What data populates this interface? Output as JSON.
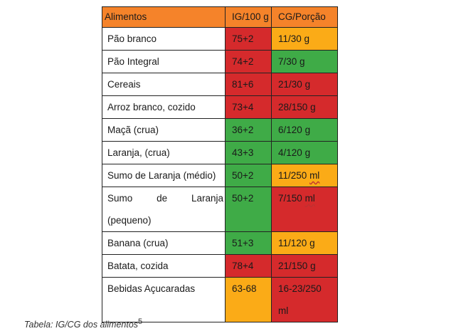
{
  "header": {
    "food": "Alimentos",
    "ig": "IG/100 g",
    "cg": "CG/Porção"
  },
  "rows": [
    {
      "food": "Pão branco",
      "ig": "75+2",
      "cg_amount": "11/30",
      "cg_unit": "g",
      "ig_color": "red",
      "cg_color": "orange"
    },
    {
      "food": "Pão Integral",
      "ig": "74+2",
      "cg_amount": "7/30",
      "cg_unit": "g",
      "ig_color": "red",
      "cg_color": "green"
    },
    {
      "food": "Cereais",
      "ig": "81+6",
      "cg_amount": "21/30",
      "cg_unit": "g",
      "ig_color": "red",
      "cg_color": "red"
    },
    {
      "food": "Arroz branco, cozido",
      "ig": "73+4",
      "cg_amount": "28/150",
      "cg_unit": "g",
      "ig_color": "red",
      "cg_color": "red"
    },
    {
      "food": "Maçã (crua)",
      "ig": "36+2",
      "cg_amount": "6/120",
      "cg_unit": "g",
      "ig_color": "green",
      "cg_color": "green"
    },
    {
      "food": "Laranja, (crua)",
      "ig": "43+3",
      "cg_amount": "4/120",
      "cg_unit": "g",
      "ig_color": "green",
      "cg_color": "green"
    },
    {
      "food": "Sumo de Laranja (médio)",
      "ig": "50+2",
      "cg_amount": "11/250",
      "cg_unit": "ml",
      "ig_color": "green",
      "cg_color": "orange"
    },
    {
      "food_words": [
        "Sumo",
        "de",
        "Laranja"
      ],
      "food_line2": "(pequeno)",
      "ig": "50+2",
      "cg_amount": "7/150",
      "cg_unit": "ml",
      "ig_color": "green",
      "cg_color": "red"
    },
    {
      "food": "Banana (crua)",
      "ig": "51+3",
      "cg_amount": "11/120",
      "cg_unit": "g",
      "ig_color": "green",
      "cg_color": "orange"
    },
    {
      "food": "Batata, cozida",
      "ig": "78+4",
      "cg_amount": "21/150",
      "cg_unit": "g",
      "ig_color": "red",
      "cg_color": "red"
    },
    {
      "food": "Bebidas Açucaradas",
      "ig": "63-68",
      "cg_line1": "16-23/250",
      "cg_line2": "ml",
      "ig_color": "orange",
      "cg_color": "red"
    }
  ],
  "caption": {
    "text": "Tabela:  IG/CG  dos alimentos",
    "ref": "5"
  },
  "colors": {
    "header": "#f5832a",
    "red": "#d52a2c",
    "green": "#3fab47",
    "orange": "#fbab17"
  }
}
